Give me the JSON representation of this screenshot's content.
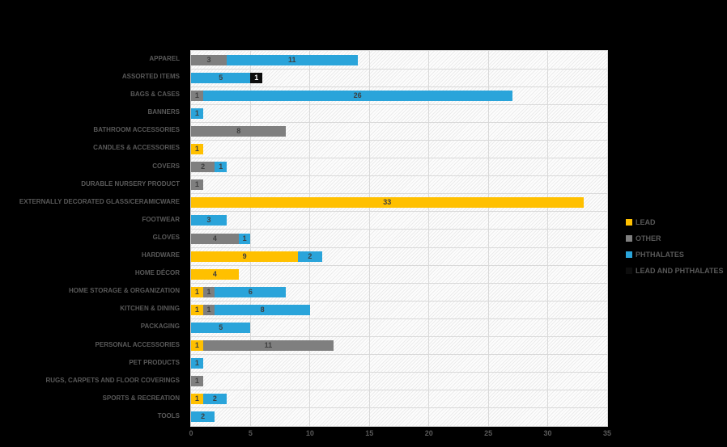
{
  "chart_data": {
    "type": "bar",
    "orientation": "horizontal",
    "stacked": true,
    "title": "",
    "xlabel": "",
    "ylabel": "",
    "xlim": [
      0,
      35
    ],
    "xticks": [
      0,
      5,
      10,
      15,
      20,
      25,
      30,
      35
    ],
    "grid": true,
    "legend_position": "right",
    "categories": [
      "APPAREL",
      "ASSORTED ITEMS",
      "BAGS & CASES",
      "BANNERS",
      "BATHROOM ACCESSORIES",
      "CANDLES & ACCESSORIES",
      "COVERS",
      "DURABLE NURSERY PRODUCT",
      "EXTERNALLY DECORATED GLASS/CERAMICWARE",
      "FOOTWEAR",
      "GLOVES",
      "HARDWARE",
      "HOME DÉCOR",
      "HOME STORAGE & ORGANIZATION",
      "KITCHEN & DINING",
      "PACKAGING",
      "PERSONAL ACCESSORIES",
      "PET PRODUCTS",
      "RUGS, CARPETS AND FLOOR COVERINGS",
      "SPORTS & RECREATION",
      "TOOLS"
    ],
    "series": [
      {
        "name": "LEAD",
        "color": "#FFC000",
        "label_color": "#3f3f3f",
        "values": [
          0,
          0,
          0,
          0,
          0,
          1,
          0,
          0,
          33,
          0,
          0,
          9,
          4,
          1,
          1,
          0,
          1,
          0,
          0,
          1,
          0
        ]
      },
      {
        "name": "OTHER",
        "color": "#7F7F7F",
        "label_color": "#3f3f3f",
        "values": [
          3,
          0,
          1,
          0,
          8,
          0,
          2,
          1,
          0,
          0,
          4,
          0,
          0,
          1,
          1,
          0,
          11,
          0,
          1,
          0,
          0
        ]
      },
      {
        "name": "PHTHALATES",
        "color": "#2AA4DA",
        "label_color": "#3f3f3f",
        "values": [
          11,
          5,
          26,
          1,
          0,
          0,
          1,
          0,
          0,
          3,
          1,
          2,
          0,
          6,
          8,
          5,
          0,
          1,
          0,
          2,
          2
        ]
      },
      {
        "name": "LEAD AND PHTHALATES",
        "color": "#0D0D0D",
        "label_color": "#FFFFFF",
        "values": [
          0,
          1,
          0,
          0,
          0,
          0,
          0,
          0,
          0,
          0,
          0,
          0,
          0,
          0,
          0,
          0,
          0,
          0,
          0,
          0,
          0
        ]
      }
    ],
    "colors": {
      "plot_background_stripe": "#ebebeb",
      "gridline": "#d9d9d9",
      "axis_text": "#595959",
      "page_background": "#000000"
    }
  }
}
